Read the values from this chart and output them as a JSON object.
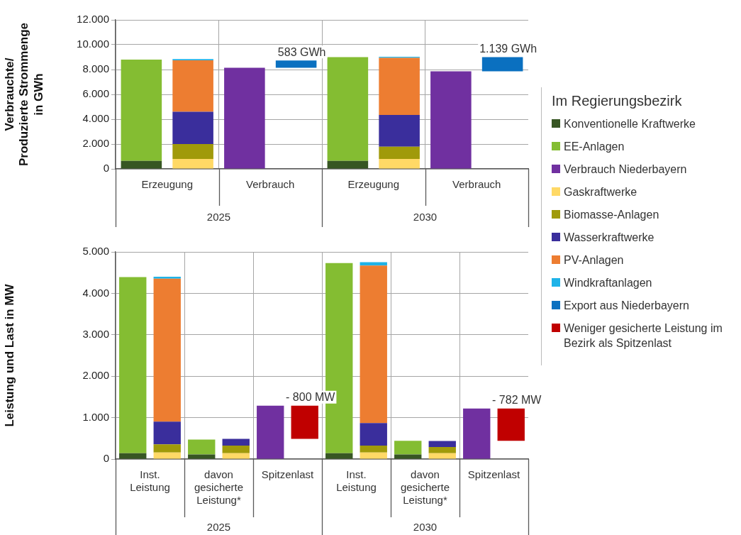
{
  "chart_data": [
    {
      "type": "bar",
      "ylabel": "Verbrauchte/\nProduzierte Strommenge\nin GWh",
      "legend": "right",
      "legend_title": "Im Regierungsbezirk",
      "grid": true,
      "stacked": true,
      "categories": [
        "Erzeugung",
        null,
        "Verbrauch",
        null,
        "Erzeugung",
        null,
        "Verbrauch",
        null
      ],
      "ylim": [
        0,
        12000
      ],
      "yticks": [
        0,
        {
          "value": 2000,
          "label": "2.000"
        },
        {
          "value": 4000,
          "label": "4.000"
        },
        {
          "value": 6000,
          "label": "6.000"
        },
        {
          "value": 8000,
          "label": "8.000"
        },
        {
          "value": 10000,
          "label": "10.000"
        },
        {
          "value": 12000,
          "label": "12.000"
        }
      ],
      "annotations": [
        "2025",
        "2030"
      ],
      "series": [
        {
          "name": "Konventionelle Kraftwerke",
          "color": "#375623",
          "values": [
            650,
            null,
            null,
            null,
            650,
            null,
            null,
            null
          ]
        },
        {
          "name": "EE-Anlagen",
          "color": "#84bd32",
          "values": [
            8150,
            null,
            null,
            null,
            8350,
            null,
            null,
            null
          ]
        },
        {
          "name": "Verbrauch Niederbayern",
          "color": "#7030a0",
          "values": [
            null,
            null,
            8150,
            null,
            null,
            null,
            7860,
            null
          ]
        },
        {
          "name": "Gaskraftwerke",
          "color": "#ffd966",
          "values": [
            null,
            800,
            null,
            null,
            null,
            800,
            null,
            null
          ]
        },
        {
          "name": "Biomasse-Anlagen",
          "color": "#a09a0a",
          "values": [
            null,
            1200,
            null,
            null,
            null,
            980,
            null,
            null
          ]
        },
        {
          "name": "Wasserkraftwerke",
          "color": "#3a2e9c",
          "values": [
            null,
            2600,
            null,
            null,
            null,
            2570,
            null,
            null
          ]
        },
        {
          "name": "PV-Anlagen",
          "color": "#ed7d31",
          "values": [
            null,
            4150,
            null,
            null,
            null,
            4600,
            null,
            null
          ]
        },
        {
          "name": "Windkraftanlagen",
          "color": "#1fb3e8",
          "values": [
            null,
            100,
            null,
            null,
            null,
            80,
            null,
            null
          ]
        },
        {
          "name": "Export aus Niederbayern",
          "color": "#0a70c0",
          "values": [
            null,
            null,
            null,
            583,
            null,
            null,
            null,
            1139
          ],
          "base": [
            null,
            null,
            null,
            8150,
            null,
            null,
            null,
            7860
          ],
          "value_labels": [
            null,
            null,
            null,
            "583 GWh",
            null,
            null,
            null,
            "1.139 GWh"
          ]
        }
      ]
    },
    {
      "type": "bar",
      "ylabel": "Leistung und Last in MW",
      "legend": "right",
      "grid": true,
      "stacked": true,
      "categories": [
        "Inst. Leistung",
        null,
        "davon gesicherte Leistung*",
        null,
        "Spitzenlast",
        null,
        "Inst. Leistung",
        null,
        "davon gesicherte Leistung*",
        null,
        "Spitzenlast",
        null
      ],
      "ylim": [
        0,
        5000
      ],
      "yticks": [
        0,
        {
          "value": 1000,
          "label": "1.000"
        },
        {
          "value": 2000,
          "label": "2.000"
        },
        {
          "value": 3000,
          "label": "3.000"
        },
        {
          "value": 4000,
          "label": "4.000"
        },
        {
          "value": 5000,
          "label": "5.000"
        }
      ],
      "annotations": [
        "2025",
        "2030"
      ],
      "series": [
        {
          "color": "#375623",
          "values": [
            140,
            null,
            110,
            null,
            null,
            null,
            140,
            null,
            110,
            null,
            null,
            null
          ]
        },
        {
          "color": "#84bd32",
          "values": [
            4250,
            null,
            360,
            null,
            null,
            null,
            4590,
            null,
            330,
            null,
            null,
            null
          ]
        },
        {
          "color": "#7030a0",
          "values": [
            null,
            null,
            null,
            null,
            1290,
            null,
            null,
            null,
            null,
            null,
            1220,
            null
          ]
        },
        {
          "color": "#ffd966",
          "values": [
            null,
            160,
            null,
            140,
            null,
            null,
            null,
            160,
            null,
            140,
            null,
            null
          ]
        },
        {
          "color": "#a09a0a",
          "values": [
            null,
            195,
            null,
            185,
            null,
            null,
            null,
            165,
            null,
            150,
            null,
            null
          ]
        },
        {
          "color": "#3a2e9c",
          "values": [
            null,
            550,
            null,
            165,
            null,
            null,
            null,
            545,
            null,
            145,
            null,
            null
          ]
        },
        {
          "color": "#ed7d31",
          "values": [
            null,
            3450,
            null,
            null,
            null,
            null,
            null,
            3800,
            null,
            null,
            null,
            null
          ]
        },
        {
          "color": "#1fb3e8",
          "values": [
            null,
            45,
            null,
            null,
            null,
            null,
            null,
            80,
            null,
            null,
            null,
            null
          ]
        },
        {
          "name": "Weniger gesicherte Leistung im Bezirk als Spitzenlast",
          "color": "#c00000",
          "values": [
            null,
            null,
            null,
            null,
            null,
            -800,
            null,
            null,
            null,
            null,
            null,
            -782
          ],
          "base": [
            null,
            null,
            null,
            null,
            null,
            1290,
            null,
            null,
            null,
            null,
            null,
            1222
          ],
          "value_labels": [
            null,
            null,
            null,
            null,
            null,
            "- 800 MW",
            null,
            null,
            null,
            null,
            null,
            "- 782 MW"
          ]
        }
      ]
    }
  ]
}
